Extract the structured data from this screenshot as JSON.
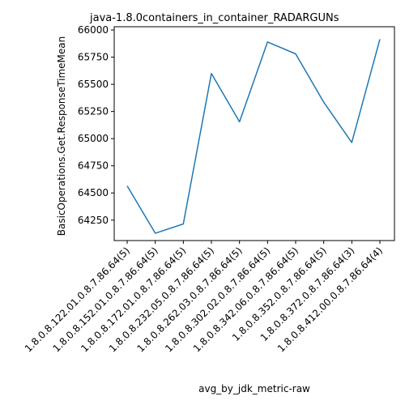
{
  "chart_data": {
    "type": "line",
    "title": "java-1.8.0containers_in_container_RADARGUNs",
    "xlabel": "avg_by_jdk_metric-raw",
    "ylabel": "BasicOperations.Get.ResponseTimeMean",
    "categories": [
      "1.8.0.8.122.01.0.8.7.86.64(5)",
      "1.8.0.8.152.01.0.8.7.86.64(5)",
      "1.8.0.8.172.01.0.8.7.86.64(5)",
      "1.8.0.8.232.05.0.8.7.86.64(5)",
      "1.8.0.8.262.03.0.8.7.86.64(5)",
      "1.8.0.8.302.02.0.8.7.86.64(5)",
      "1.8.0.8.342.06.0.8.7.86.64(5)",
      "1.8.0.8.352.0.8.7.86.64(5)",
      "1.8.0.8.372.0.8.7.86.64(3)",
      "1.8.0.8.412.00.0.8.7.86.64(4)"
    ],
    "series": [
      {
        "values": [
          64565,
          64130,
          64215,
          65600,
          65155,
          65890,
          65780,
          65335,
          64965,
          65915
        ]
      }
    ],
    "yticks": [
      "64250",
      "64500",
      "64750",
      "65000",
      "65250",
      "65500",
      "65750",
      "66000"
    ],
    "ylim": [
      64062,
      66030
    ],
    "grid": false,
    "line_color": "#1f77b4"
  }
}
